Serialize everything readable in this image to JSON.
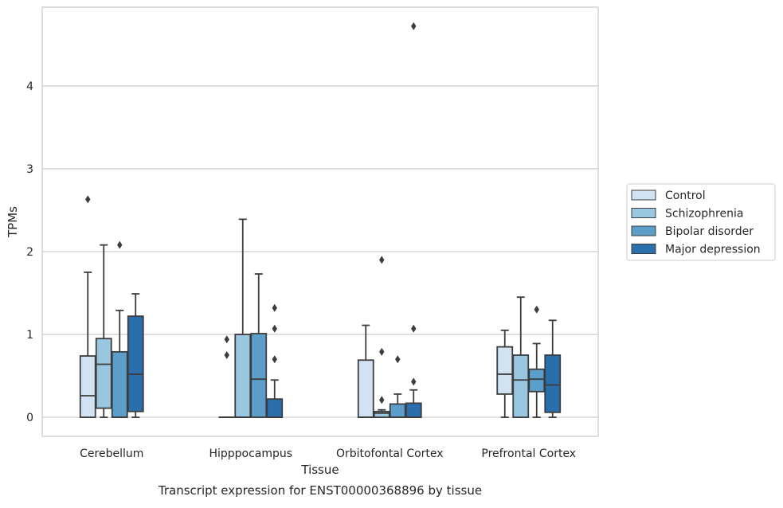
{
  "chart_data": {
    "type": "box",
    "title": "",
    "caption": "Transcript expression for ENST00000368896 by tissue",
    "xlabel": "Tissue",
    "ylabel": "TPMs",
    "ylim": [
      -0.23,
      4.95
    ],
    "yticks": [
      0,
      1,
      2,
      3,
      4
    ],
    "ytick_labels": [
      "0",
      "1",
      "2",
      "3",
      "4"
    ],
    "grid": "horizontal",
    "legend_position": "right",
    "categories": [
      "Cerebellum",
      "Hipppocampus",
      "Orbitofontal Cortex",
      "Prefrontal Cortex"
    ],
    "series": [
      {
        "name": "Control",
        "color": "#d1e2f2",
        "boxes": [
          {
            "whislo": 0.0,
            "q1": 0.0,
            "med": 0.26,
            "q3": 0.74,
            "whishi": 1.75,
            "fliers": [
              2.63
            ]
          },
          {
            "whislo": 0.0,
            "q1": 0.0,
            "med": 0.0,
            "q3": 0.0,
            "whishi": 0.0,
            "fliers": [
              0.75,
              0.94
            ]
          },
          {
            "whislo": 0.0,
            "q1": 0.0,
            "med": 0.0,
            "q3": 0.69,
            "whishi": 1.11,
            "fliers": []
          },
          {
            "whislo": 0.0,
            "q1": 0.28,
            "med": 0.52,
            "q3": 0.85,
            "whishi": 1.05,
            "fliers": []
          }
        ]
      },
      {
        "name": "Schizophrenia",
        "color": "#9ac7e0",
        "boxes": [
          {
            "whislo": 0.0,
            "q1": 0.11,
            "med": 0.64,
            "q3": 0.95,
            "whishi": 2.08,
            "fliers": []
          },
          {
            "whislo": 0.0,
            "q1": 0.0,
            "med": 0.0,
            "q3": 1.0,
            "whishi": 2.39,
            "fliers": []
          },
          {
            "whislo": 0.0,
            "q1": 0.0,
            "med": 0.05,
            "q3": 0.07,
            "whishi": 0.09,
            "fliers": [
              0.21,
              0.79,
              1.9
            ]
          },
          {
            "whislo": 0.0,
            "q1": 0.0,
            "med": 0.45,
            "q3": 0.75,
            "whishi": 1.45,
            "fliers": []
          }
        ]
      },
      {
        "name": "Bipolar disorder",
        "color": "#5b9ec9",
        "boxes": [
          {
            "whislo": 0.0,
            "q1": 0.0,
            "med": 0.0,
            "q3": 0.79,
            "whishi": 1.29,
            "fliers": [
              2.08
            ]
          },
          {
            "whislo": 0.0,
            "q1": 0.0,
            "med": 0.46,
            "q3": 1.01,
            "whishi": 1.73,
            "fliers": []
          },
          {
            "whislo": 0.0,
            "q1": 0.0,
            "med": 0.0,
            "q3": 0.16,
            "whishi": 0.28,
            "fliers": [
              0.7
            ]
          },
          {
            "whislo": 0.0,
            "q1": 0.31,
            "med": 0.46,
            "q3": 0.58,
            "whishi": 0.89,
            "fliers": [
              1.3
            ]
          }
        ]
      },
      {
        "name": "Major depression",
        "color": "#2a6ead",
        "boxes": [
          {
            "whislo": 0.0,
            "q1": 0.07,
            "med": 0.52,
            "q3": 1.22,
            "whishi": 1.49,
            "fliers": []
          },
          {
            "whislo": 0.0,
            "q1": 0.0,
            "med": 0.0,
            "q3": 0.22,
            "whishi": 0.45,
            "fliers": [
              0.7,
              1.07,
              1.32
            ]
          },
          {
            "whislo": 0.0,
            "q1": 0.0,
            "med": 0.0,
            "q3": 0.17,
            "whishi": 0.33,
            "fliers": [
              0.43,
              1.07,
              4.72
            ]
          },
          {
            "whislo": 0.0,
            "q1": 0.06,
            "med": 0.39,
            "q3": 0.75,
            "whishi": 1.17,
            "fliers": []
          }
        ]
      }
    ]
  }
}
